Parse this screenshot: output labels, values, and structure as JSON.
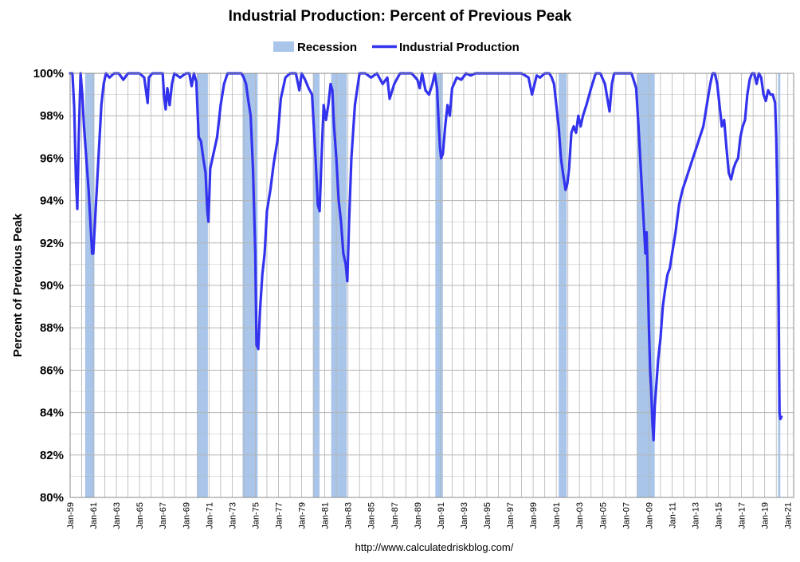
{
  "colors": {
    "recession": "#a9c6ea",
    "line": "#3333ee",
    "grid": "#b4b4b4",
    "axis": "#888888"
  },
  "chart_data": {
    "type": "line",
    "title": "Industrial Production: Percent of Previous Peak",
    "xlabel": "",
    "ylabel": "Percent of Previous Peak",
    "source": "http://www.calculatedriskblog.com/",
    "ylim": [
      80,
      100
    ],
    "xlim": [
      1959.0,
      2021.5
    ],
    "grid": true,
    "legend_position": "top-center",
    "legend": [
      {
        "name": "Recession",
        "kind": "area"
      },
      {
        "name": "Industrial Production",
        "kind": "line"
      }
    ],
    "y_ticks": [
      80,
      82,
      84,
      86,
      88,
      90,
      92,
      94,
      96,
      98,
      100
    ],
    "y_tick_labels": [
      "80%",
      "82%",
      "84%",
      "86%",
      "88%",
      "90%",
      "92%",
      "94%",
      "96%",
      "98%",
      "100%"
    ],
    "x_ticks": [
      1959,
      1961,
      1963,
      1965,
      1967,
      1969,
      1971,
      1973,
      1975,
      1977,
      1979,
      1981,
      1983,
      1985,
      1987,
      1989,
      1991,
      1993,
      1995,
      1997,
      1999,
      2001,
      2003,
      2005,
      2007,
      2009,
      2011,
      2013,
      2015,
      2017,
      2019,
      2021
    ],
    "x_tick_labels": [
      "Jan-59",
      "Jan-61",
      "Jan-63",
      "Jan-65",
      "Jan-67",
      "Jan-69",
      "Jan-71",
      "Jan-73",
      "Jan-75",
      "Jan-77",
      "Jan-79",
      "Jan-81",
      "Jan-83",
      "Jan-85",
      "Jan-87",
      "Jan-89",
      "Jan-91",
      "Jan-93",
      "Jan-95",
      "Jan-97",
      "Jan-99",
      "Jan-01",
      "Jan-03",
      "Jan-05",
      "Jan-07",
      "Jan-09",
      "Jan-11",
      "Jan-13",
      "Jan-15",
      "Jan-17",
      "Jan-19",
      "Jan-21"
    ],
    "recessions": [
      [
        1960.3,
        1961.1
      ],
      [
        1969.95,
        1970.9
      ],
      [
        1973.9,
        1975.2
      ],
      [
        1980.0,
        1980.55
      ],
      [
        1981.55,
        1982.9
      ],
      [
        1990.55,
        1991.2
      ],
      [
        2001.2,
        2001.9
      ],
      [
        2007.95,
        2009.5
      ],
      [
        2020.15,
        2020.35
      ]
    ],
    "series": [
      {
        "name": "Industrial Production",
        "x": [
          1959.0,
          1959.2,
          1959.35,
          1959.5,
          1959.62,
          1959.75,
          1959.9,
          1960.05,
          1960.2,
          1960.4,
          1960.6,
          1960.75,
          1960.9,
          1961.0,
          1961.1,
          1961.3,
          1961.5,
          1961.7,
          1961.9,
          1962.1,
          1962.4,
          1962.8,
          1963.2,
          1963.6,
          1964.0,
          1964.5,
          1965.0,
          1965.4,
          1965.7,
          1965.8,
          1966.1,
          1966.5,
          1967.0,
          1967.1,
          1967.25,
          1967.4,
          1967.6,
          1967.8,
          1968.0,
          1968.5,
          1969.0,
          1969.3,
          1969.5,
          1969.7,
          1969.9,
          1970.1,
          1970.3,
          1970.5,
          1970.7,
          1970.85,
          1970.95,
          1971.1,
          1971.3,
          1971.5,
          1971.7,
          1972.0,
          1972.3,
          1972.6,
          1973.0,
          1973.5,
          1973.8,
          1974.0,
          1974.2,
          1974.4,
          1974.6,
          1974.8,
          1975.0,
          1975.1,
          1975.25,
          1975.4,
          1975.6,
          1975.8,
          1976.0,
          1976.3,
          1976.6,
          1976.9,
          1977.2,
          1977.6,
          1978.0,
          1978.5,
          1978.8,
          1979.0,
          1979.3,
          1979.6,
          1979.9,
          1980.0,
          1980.2,
          1980.4,
          1980.55,
          1980.7,
          1980.9,
          1981.1,
          1981.3,
          1981.5,
          1981.65,
          1981.8,
          1982.0,
          1982.2,
          1982.4,
          1982.6,
          1982.8,
          1982.95,
          1983.1,
          1983.3,
          1983.6,
          1984.0,
          1984.5,
          1985.0,
          1985.5,
          1986.0,
          1986.4,
          1986.6,
          1987.0,
          1987.5,
          1988.0,
          1988.5,
          1989.0,
          1989.2,
          1989.4,
          1989.7,
          1990.0,
          1990.3,
          1990.5,
          1990.7,
          1990.85,
          1990.95,
          1991.05,
          1991.2,
          1991.4,
          1991.6,
          1991.8,
          1992.0,
          1992.4,
          1992.8,
          1993.2,
          1993.6,
          1994.0,
          1994.5,
          1995.0,
          1995.5,
          1996.0,
          1997.0,
          1998.0,
          1998.6,
          1998.9,
          1999.3,
          1999.6,
          2000.0,
          2000.4,
          2000.6,
          2000.8,
          2001.0,
          2001.2,
          2001.4,
          2001.6,
          2001.8,
          2001.95,
          2002.1,
          2002.3,
          2002.5,
          2002.7,
          2002.9,
          2003.1,
          2003.3,
          2003.6,
          2004.0,
          2004.4,
          2004.8,
          2005.2,
          2005.6,
          2005.8,
          2006.0,
          2006.5,
          2007.0,
          2007.5,
          2007.9,
          2008.1,
          2008.3,
          2008.5,
          2008.7,
          2008.8,
          2008.9,
          2009.0,
          2009.1,
          2009.2,
          2009.3,
          2009.4,
          2009.5,
          2009.6,
          2009.8,
          2010.0,
          2010.2,
          2010.4,
          2010.6,
          2010.8,
          2011.0,
          2011.3,
          2011.6,
          2011.9,
          2012.2,
          2012.5,
          2012.8,
          2013.1,
          2013.4,
          2013.7,
          2014.0,
          2014.3,
          2014.5,
          2014.7,
          2014.9,
          2015.1,
          2015.3,
          2015.5,
          2015.7,
          2015.9,
          2016.1,
          2016.3,
          2016.5,
          2016.7,
          2016.9,
          2017.1,
          2017.3,
          2017.5,
          2017.7,
          2017.9,
          2018.1,
          2018.3,
          2018.5,
          2018.7,
          2018.9,
          2019.1,
          2019.3,
          2019.5,
          2019.7,
          2019.9,
          2020.0,
          2020.1,
          2020.2,
          2020.28,
          2020.35,
          2020.45
        ],
        "values": [
          100,
          100,
          98.4,
          95.0,
          93.6,
          97.0,
          100,
          99.0,
          97.5,
          96.0,
          94.5,
          93.0,
          91.5,
          91.5,
          92.5,
          94.5,
          96.5,
          98.5,
          99.5,
          100,
          99.8,
          100,
          100,
          99.7,
          100,
          100,
          100,
          99.8,
          98.6,
          99.8,
          100,
          100,
          100,
          99.0,
          98.3,
          99.3,
          98.5,
          99.5,
          100,
          99.8,
          100,
          100,
          99.4,
          100,
          99.6,
          97.0,
          96.8,
          96.0,
          95.3,
          93.5,
          93.0,
          95.5,
          96.0,
          96.5,
          97.0,
          98.5,
          99.5,
          100,
          100,
          100,
          100,
          99.8,
          99.5,
          98.7,
          98.0,
          95.5,
          91.5,
          87.2,
          87.0,
          88.8,
          90.5,
          91.5,
          93.5,
          94.5,
          95.8,
          96.8,
          98.8,
          99.8,
          100,
          100,
          99.2,
          100,
          99.7,
          99.3,
          99.0,
          98.0,
          96.0,
          93.8,
          93.5,
          95.8,
          98.5,
          97.8,
          98.5,
          99.5,
          99.2,
          97.5,
          96.0,
          94.0,
          93.0,
          91.5,
          91.0,
          90.2,
          93.0,
          96.0,
          98.5,
          100,
          100,
          99.8,
          100,
          99.5,
          99.8,
          98.8,
          99.5,
          100,
          100,
          100,
          99.7,
          99.3,
          100,
          99.2,
          99.0,
          99.5,
          100,
          99.3,
          97.5,
          96.5,
          96.0,
          96.2,
          97.5,
          98.5,
          98.0,
          99.3,
          99.8,
          99.7,
          100,
          99.9,
          100,
          100,
          100,
          100,
          100,
          100,
          100,
          99.8,
          99.0,
          99.9,
          99.8,
          100,
          100,
          99.8,
          99.5,
          98.5,
          97.5,
          96.0,
          95.2,
          94.5,
          94.8,
          95.5,
          97.2,
          97.5,
          97.2,
          98.0,
          97.5,
          98.0,
          98.5,
          99.3,
          100,
          100,
          99.5,
          98.2,
          99.5,
          100,
          100,
          100,
          100,
          99.3,
          97.5,
          95.5,
          93.5,
          91.5,
          92.5,
          90.5,
          88.0,
          86.0,
          85.0,
          83.5,
          82.7,
          84.3,
          85.0,
          86.5,
          87.5,
          89.0,
          89.8,
          90.5,
          90.8,
          91.5,
          92.5,
          93.8,
          94.5,
          95.0,
          95.5,
          96.0,
          96.5,
          97.0,
          97.5,
          98.5,
          99.5,
          100,
          100,
          99.5,
          98.5,
          97.5,
          97.8,
          96.5,
          95.3,
          95.0,
          95.5,
          95.8,
          96.0,
          97.0,
          97.5,
          97.8,
          99.0,
          99.7,
          100,
          100,
          99.5,
          100,
          99.8,
          99.0,
          98.7,
          99.2,
          99.0,
          99.0,
          98.6,
          97.0,
          94.0,
          89.0,
          84.0,
          83.7,
          83.8
        ]
      }
    ]
  }
}
